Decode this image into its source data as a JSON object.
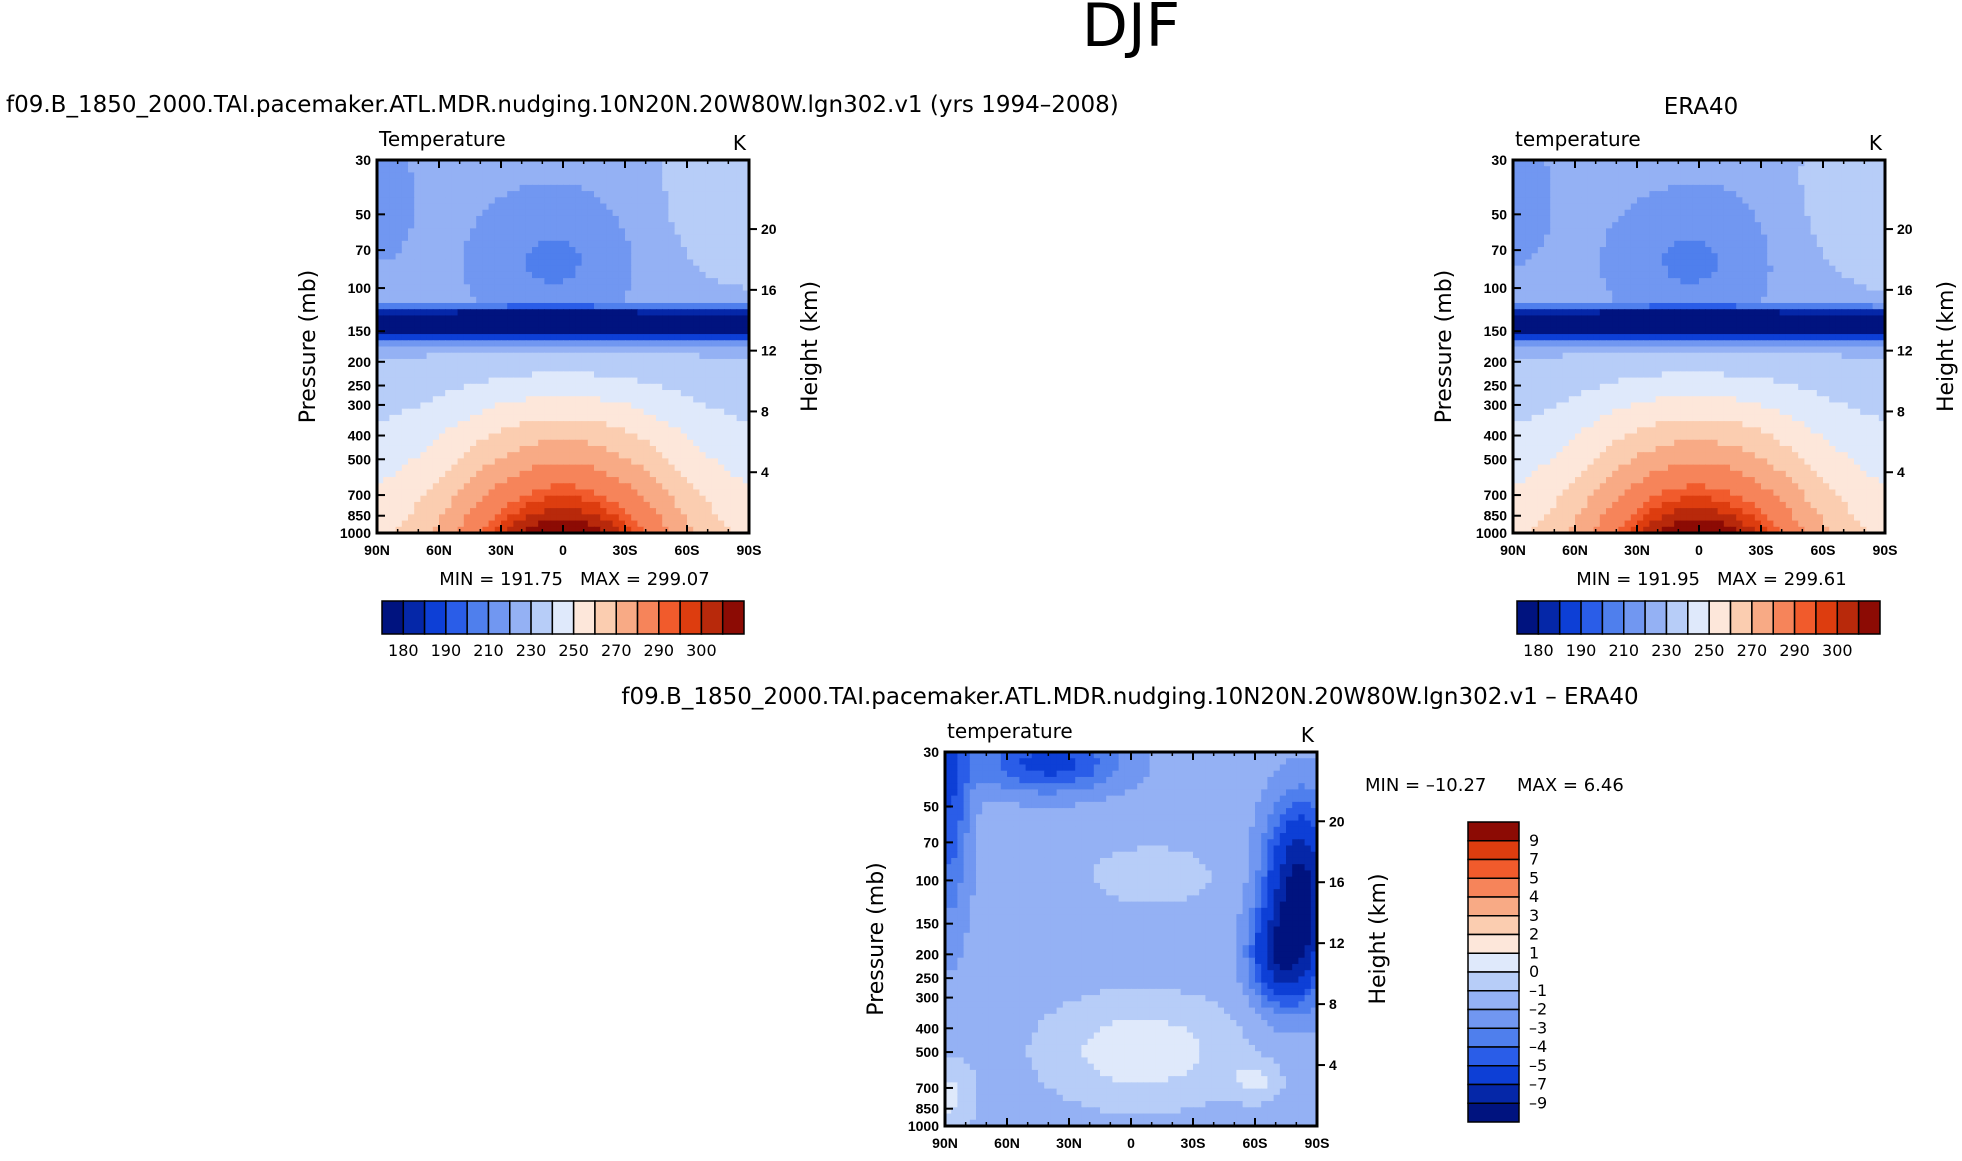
{
  "figure": {
    "title": "DJF"
  },
  "chart_data": [
    {
      "type": "heatmap",
      "title": "f09.B_1850_2000.TAI.pacemaker.ATL.MDR.nudging.10N20N.20W80W.lgn302.v1 (yrs 1994–2008)",
      "variable": "Temperature",
      "units": "K",
      "xlabel": "",
      "ylabel": "Pressure  (mb)",
      "y2label": "Height  (km)",
      "x_ticks": [
        "90N",
        "60N",
        "30N",
        "0",
        "30S",
        "60S",
        "90S"
      ],
      "x_values": [
        90,
        60,
        30,
        0,
        -30,
        -60,
        -90
      ],
      "y_ticks": [
        "30",
        "50",
        "70",
        "100",
        "150",
        "200",
        "250",
        "300",
        "400",
        "500",
        "700",
        "850",
        "1000"
      ],
      "y_values": [
        30,
        50,
        70,
        100,
        150,
        200,
        250,
        300,
        400,
        500,
        700,
        850,
        1000
      ],
      "y2_ticks": [
        "20",
        "16",
        "12",
        "8",
        "4"
      ],
      "y2_values": [
        20,
        16,
        12,
        8,
        4
      ],
      "ylim": [
        1000,
        30
      ],
      "xlim": [
        90,
        -90
      ],
      "min_label": "MIN = 191.75",
      "max_label": "MAX = 299.07",
      "min": 191.75,
      "max": 299.07,
      "contour_levels": [
        175,
        180,
        185,
        190,
        200,
        210,
        220,
        230,
        240,
        250,
        260,
        270,
        280,
        285,
        290,
        295,
        300
      ],
      "colorbar_labels": [
        "180",
        "190",
        "210",
        "230",
        "250",
        "270",
        "290",
        "300"
      ]
    },
    {
      "type": "heatmap",
      "title": "ERA40",
      "variable": "temperature",
      "units": "K",
      "xlabel": "",
      "ylabel": "Pressure  (mb)",
      "y2label": "Height  (km)",
      "x_ticks": [
        "90N",
        "60N",
        "30N",
        "0",
        "30S",
        "60S",
        "90S"
      ],
      "x_values": [
        90,
        60,
        30,
        0,
        -30,
        -60,
        -90
      ],
      "y_ticks": [
        "30",
        "50",
        "70",
        "100",
        "150",
        "200",
        "250",
        "300",
        "400",
        "500",
        "700",
        "850",
        "1000"
      ],
      "y_values": [
        30,
        50,
        70,
        100,
        150,
        200,
        250,
        300,
        400,
        500,
        700,
        850,
        1000
      ],
      "y2_ticks": [
        "20",
        "16",
        "12",
        "8",
        "4"
      ],
      "y2_values": [
        20,
        16,
        12,
        8,
        4
      ],
      "ylim": [
        1000,
        30
      ],
      "xlim": [
        90,
        -90
      ],
      "min_label": "MIN = 191.95",
      "max_label": "MAX = 299.61",
      "min": 191.95,
      "max": 299.61,
      "contour_levels": [
        175,
        180,
        185,
        190,
        200,
        210,
        220,
        230,
        240,
        250,
        260,
        270,
        280,
        285,
        290,
        295,
        300
      ],
      "colorbar_labels": [
        "180",
        "190",
        "210",
        "230",
        "250",
        "270",
        "290",
        "300"
      ]
    },
    {
      "type": "heatmap",
      "title": "f09.B_1850_2000.TAI.pacemaker.ATL.MDR.nudging.10N20N.20W80W.lgn302.v1  –  ERA40",
      "variable": "temperature",
      "units": "K",
      "xlabel": "",
      "ylabel": "Pressure  (mb)",
      "y2label": "Height  (km)",
      "x_ticks": [
        "90N",
        "60N",
        "30N",
        "0",
        "30S",
        "60S",
        "90S"
      ],
      "x_values": [
        90,
        60,
        30,
        0,
        -30,
        -60,
        -90
      ],
      "y_ticks": [
        "30",
        "50",
        "70",
        "100",
        "150",
        "200",
        "250",
        "300",
        "400",
        "500",
        "700",
        "850",
        "1000"
      ],
      "y_values": [
        30,
        50,
        70,
        100,
        150,
        200,
        250,
        300,
        400,
        500,
        700,
        850,
        1000
      ],
      "y2_ticks": [
        "20",
        "16",
        "12",
        "8",
        "4"
      ],
      "y2_values": [
        20,
        16,
        12,
        8,
        4
      ],
      "ylim": [
        1000,
        30
      ],
      "xlim": [
        90,
        -90
      ],
      "min_label": "MIN =  –10.27",
      "max_label": "MAX =    6.46",
      "min": -10.27,
      "max": 6.46,
      "contour_levels": [
        -9,
        -7,
        -5,
        -4,
        -3,
        -2,
        -1,
        0,
        1,
        2,
        3,
        4,
        5,
        7,
        9
      ],
      "colorbar_labels": [
        "9",
        "7",
        "5",
        "4",
        "3",
        "2",
        "1",
        "0",
        "–1",
        "–2",
        "–3",
        "–4",
        "–5",
        "–7",
        "–9"
      ]
    }
  ],
  "colors": {
    "abs_scale": [
      "#00137f",
      "#0527a8",
      "#0d3fd6",
      "#2a5de8",
      "#4f7fed",
      "#7197f1",
      "#94b1f4",
      "#b7cdf8",
      "#dfe9fb",
      "#fde7da",
      "#fbcdb0",
      "#f8aa85",
      "#f6845a",
      "#f15b2c",
      "#dd3d0f",
      "#b8290b",
      "#8c0b04"
    ],
    "diff_scale": [
      "#00137f",
      "#0527a8",
      "#0d3fd6",
      "#2a5de8",
      "#4f7fed",
      "#7197f1",
      "#94b1f4",
      "#b7cdf8",
      "#dfe9fb",
      "#fde7da",
      "#fbcdb0",
      "#f8aa85",
      "#f6845a",
      "#f15b2c",
      "#dd3d0f",
      "#b8290b",
      "#8c0b04"
    ]
  }
}
